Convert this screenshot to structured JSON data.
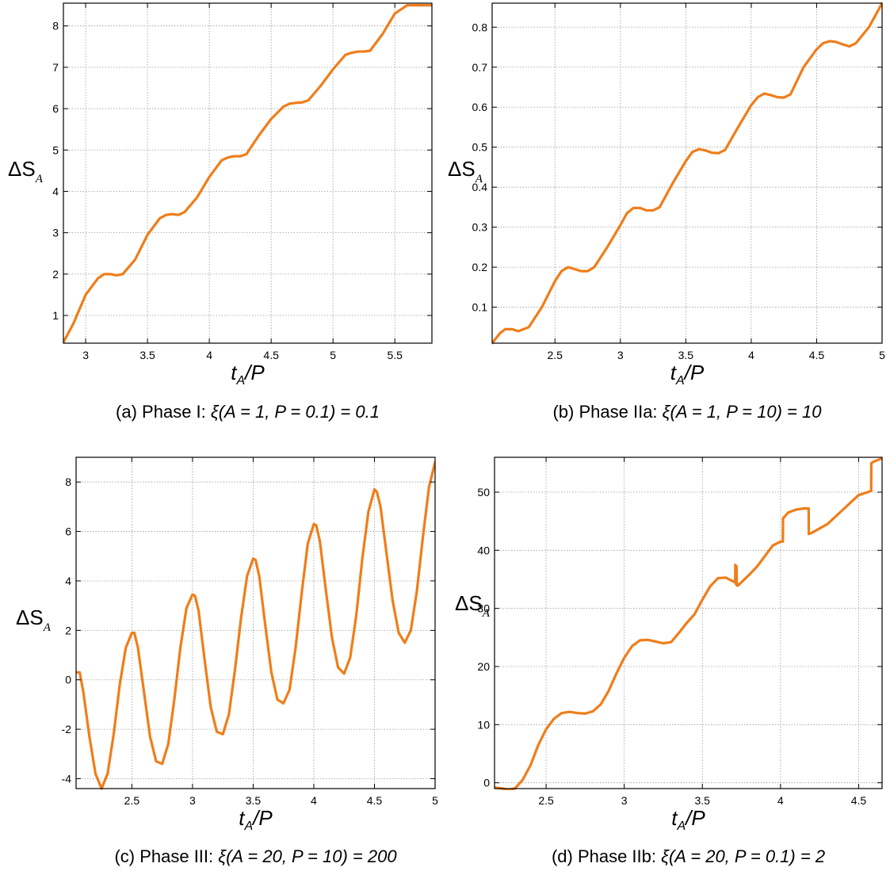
{
  "chart_data": [
    {
      "type": "line",
      "panel": "a",
      "caption_prefix": "(a)",
      "caption_phase": "Phase I:",
      "caption_formula": "ξ(A = 1, P = 0.1) = 0.1",
      "xlabel": "t_A/P",
      "ylabel": "ΔS_A",
      "xlim": [
        2.82,
        5.8
      ],
      "ylim": [
        0.33,
        8.55
      ],
      "xticks": [
        3,
        3.5,
        4,
        4.5,
        5,
        5.5
      ],
      "yticks": [
        1,
        2,
        3,
        4,
        5,
        6,
        7,
        8
      ],
      "grid": true,
      "color": "#f07d1a",
      "x": [
        2.82,
        2.9,
        3.0,
        3.1,
        3.15,
        3.2,
        3.25,
        3.3,
        3.4,
        3.5,
        3.6,
        3.65,
        3.7,
        3.75,
        3.8,
        3.9,
        4.0,
        4.1,
        4.15,
        4.2,
        4.25,
        4.3,
        4.4,
        4.5,
        4.6,
        4.65,
        4.7,
        4.75,
        4.8,
        4.9,
        5.0,
        5.1,
        5.15,
        5.2,
        5.25,
        5.3,
        5.4,
        5.5,
        5.6,
        5.7,
        5.8
      ],
      "y": [
        0.35,
        0.8,
        1.5,
        1.9,
        2.0,
        2.0,
        1.97,
        2.0,
        2.35,
        2.95,
        3.35,
        3.43,
        3.45,
        3.43,
        3.5,
        3.85,
        4.35,
        4.75,
        4.82,
        4.85,
        4.85,
        4.9,
        5.35,
        5.75,
        6.05,
        6.12,
        6.14,
        6.15,
        6.2,
        6.55,
        6.95,
        7.3,
        7.35,
        7.38,
        7.38,
        7.4,
        7.8,
        8.3,
        8.5,
        8.5,
        8.5
      ]
    },
    {
      "type": "line",
      "panel": "b",
      "caption_prefix": "(b)",
      "caption_phase": "Phase IIa:",
      "caption_formula": "ξ(A = 1, P = 10) = 10",
      "xlabel": "t_A/P",
      "ylabel": "ΔS_A",
      "xlim": [
        2.02,
        5.0
      ],
      "ylim": [
        0.01,
        0.86
      ],
      "xticks": [
        2.5,
        3,
        3.5,
        4,
        4.5,
        5
      ],
      "yticks": [
        0.1,
        0.2,
        0.3,
        0.4,
        0.5,
        0.6,
        0.7,
        0.8
      ],
      "grid": true,
      "color": "#f07d1a",
      "x": [
        2.02,
        2.08,
        2.12,
        2.17,
        2.22,
        2.3,
        2.4,
        2.5,
        2.55,
        2.6,
        2.65,
        2.7,
        2.75,
        2.8,
        2.9,
        3.0,
        3.05,
        3.1,
        3.15,
        3.2,
        3.25,
        3.3,
        3.4,
        3.5,
        3.55,
        3.6,
        3.65,
        3.7,
        3.75,
        3.8,
        3.9,
        4.0,
        4.05,
        4.1,
        4.15,
        4.2,
        4.25,
        4.3,
        4.4,
        4.5,
        4.55,
        4.6,
        4.65,
        4.7,
        4.75,
        4.8,
        4.9,
        5.0
      ],
      "y": [
        0.01,
        0.035,
        0.045,
        0.045,
        0.04,
        0.05,
        0.1,
        0.165,
        0.19,
        0.2,
        0.195,
        0.19,
        0.19,
        0.2,
        0.25,
        0.305,
        0.335,
        0.348,
        0.348,
        0.342,
        0.342,
        0.35,
        0.41,
        0.465,
        0.488,
        0.495,
        0.492,
        0.486,
        0.485,
        0.493,
        0.55,
        0.605,
        0.625,
        0.634,
        0.63,
        0.625,
        0.624,
        0.632,
        0.7,
        0.745,
        0.76,
        0.765,
        0.763,
        0.757,
        0.752,
        0.76,
        0.8,
        0.86
      ]
    },
    {
      "type": "line",
      "panel": "c",
      "caption_prefix": "(c)",
      "caption_phase": "Phase III:",
      "caption_formula": "ξ(A = 20, P = 10) = 200",
      "xlabel": "t_A/P",
      "ylabel": "ΔS_A",
      "xlim": [
        2.04,
        5.0
      ],
      "ylim": [
        -4.4,
        9.0
      ],
      "xticks": [
        2.5,
        3,
        3.5,
        4,
        4.5,
        5
      ],
      "yticks": [
        -4,
        -2,
        0,
        2,
        4,
        6,
        8
      ],
      "ytick_labels": [
        "-4",
        "-2",
        "0",
        "2",
        "4",
        "6",
        "8"
      ],
      "grid": true,
      "color": "#f07d1a",
      "x": [
        2.04,
        2.07,
        2.1,
        2.15,
        2.2,
        2.25,
        2.3,
        2.35,
        2.4,
        2.45,
        2.5,
        2.52,
        2.55,
        2.6,
        2.65,
        2.7,
        2.75,
        2.8,
        2.85,
        2.9,
        2.95,
        3.0,
        3.02,
        3.05,
        3.1,
        3.15,
        3.2,
        3.25,
        3.3,
        3.35,
        3.4,
        3.45,
        3.5,
        3.52,
        3.55,
        3.6,
        3.65,
        3.7,
        3.75,
        3.8,
        3.85,
        3.9,
        3.95,
        4.0,
        4.02,
        4.05,
        4.1,
        4.15,
        4.2,
        4.25,
        4.3,
        4.35,
        4.4,
        4.45,
        4.5,
        4.52,
        4.55,
        4.6,
        4.65,
        4.7,
        4.75,
        4.8,
        4.85,
        4.9,
        4.95,
        5.0
      ],
      "y": [
        0.3,
        0.3,
        -0.5,
        -2.3,
        -3.8,
        -4.4,
        -3.8,
        -2.2,
        -0.2,
        1.3,
        1.9,
        1.9,
        1.3,
        -0.5,
        -2.3,
        -3.3,
        -3.4,
        -2.6,
        -0.8,
        1.3,
        2.9,
        3.45,
        3.4,
        2.8,
        0.8,
        -1.1,
        -2.1,
        -2.2,
        -1.4,
        0.4,
        2.5,
        4.2,
        4.9,
        4.85,
        4.2,
        2.2,
        0.3,
        -0.8,
        -0.95,
        -0.4,
        1.3,
        3.5,
        5.5,
        6.3,
        6.25,
        5.6,
        3.6,
        1.7,
        0.5,
        0.25,
        0.9,
        2.6,
        4.9,
        6.8,
        7.7,
        7.6,
        7.0,
        5.1,
        3.2,
        1.9,
        1.5,
        2.0,
        3.6,
        5.8,
        7.8,
        8.8
      ]
    },
    {
      "type": "line",
      "panel": "d",
      "caption_prefix": "(d)",
      "caption_phase": "Phase IIb:",
      "caption_formula": "ξ(A = 20, P = 0.1) = 2",
      "xlabel": "t_A/P",
      "ylabel": "ΔS_A",
      "xlim": [
        2.17,
        4.65
      ],
      "ylim": [
        -1.0,
        56.0
      ],
      "xticks": [
        2.5,
        3,
        3.5,
        4,
        4.5
      ],
      "yticks": [
        0,
        10,
        20,
        30,
        40,
        50
      ],
      "grid": true,
      "color": "#f07d1a",
      "x": [
        2.17,
        2.22,
        2.26,
        2.3,
        2.35,
        2.4,
        2.45,
        2.5,
        2.55,
        2.6,
        2.65,
        2.7,
        2.75,
        2.8,
        2.85,
        2.9,
        2.95,
        3.0,
        3.05,
        3.1,
        3.15,
        3.2,
        3.25,
        3.3,
        3.35,
        3.4,
        3.45,
        3.5,
        3.55,
        3.6,
        3.65,
        3.7,
        3.71,
        3.711,
        3.715,
        3.719,
        3.72,
        3.725,
        3.73,
        3.75,
        3.8,
        3.85,
        3.9,
        3.95,
        4.0,
        4.015,
        4.016,
        4.05,
        4.1,
        4.15,
        4.18,
        4.181,
        4.2,
        4.3,
        4.4,
        4.5,
        4.58,
        4.581,
        4.6,
        4.65
      ],
      "y": [
        -0.8,
        -1.0,
        -1.2,
        -1.0,
        0.5,
        3.0,
        6.5,
        9.2,
        11.0,
        12.0,
        12.2,
        12.0,
        11.9,
        12.3,
        13.5,
        15.8,
        18.8,
        21.5,
        23.5,
        24.5,
        24.6,
        24.3,
        24.0,
        24.2,
        25.8,
        27.5,
        29.0,
        31.5,
        33.8,
        35.2,
        35.3,
        34.6,
        34.5,
        37.5,
        34.2,
        37.2,
        34.0,
        33.9,
        34.0,
        34.5,
        35.8,
        37.2,
        39.0,
        40.8,
        41.5,
        41.5,
        45.5,
        46.5,
        47.0,
        47.2,
        47.2,
        42.8,
        43.0,
        44.5,
        47.0,
        49.5,
        50.2,
        55.0,
        55.3,
        55.8
      ]
    }
  ]
}
